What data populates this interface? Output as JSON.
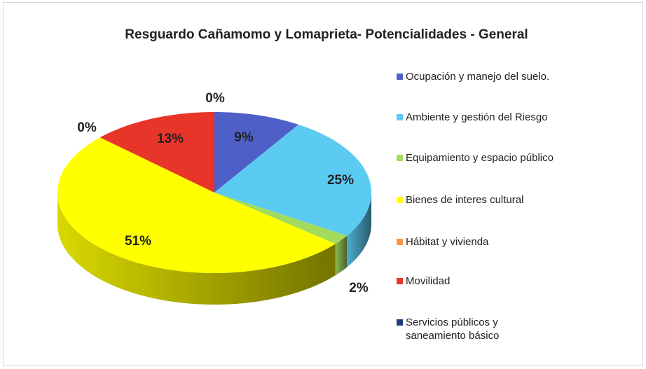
{
  "chart_data": {
    "type": "pie3d",
    "title": "Resguardo Cañamomo y Lomaprieta-  Potencialidades  - General",
    "categories": [
      "Ocupación y manejo del suelo.",
      "Ambiente y gestión del Riesgo",
      "Equipamiento y espacio público",
      "Bienes de interes cultural",
      "Hábitat y vivienda",
      "Movilidad",
      "Servicios públicos y saneamiento básico"
    ],
    "values": [
      9,
      25,
      2,
      51,
      0,
      13,
      0
    ],
    "value_labels": [
      "9%",
      "25%",
      "2%",
      "51%",
      "0%",
      "13%",
      "0%"
    ],
    "colors": [
      "#4f5fc8",
      "#5bcbf2",
      "#a3dc5c",
      "#ffff00",
      "#f79646",
      "#e8352a",
      "#1f3a7a"
    ],
    "legend": "right"
  }
}
